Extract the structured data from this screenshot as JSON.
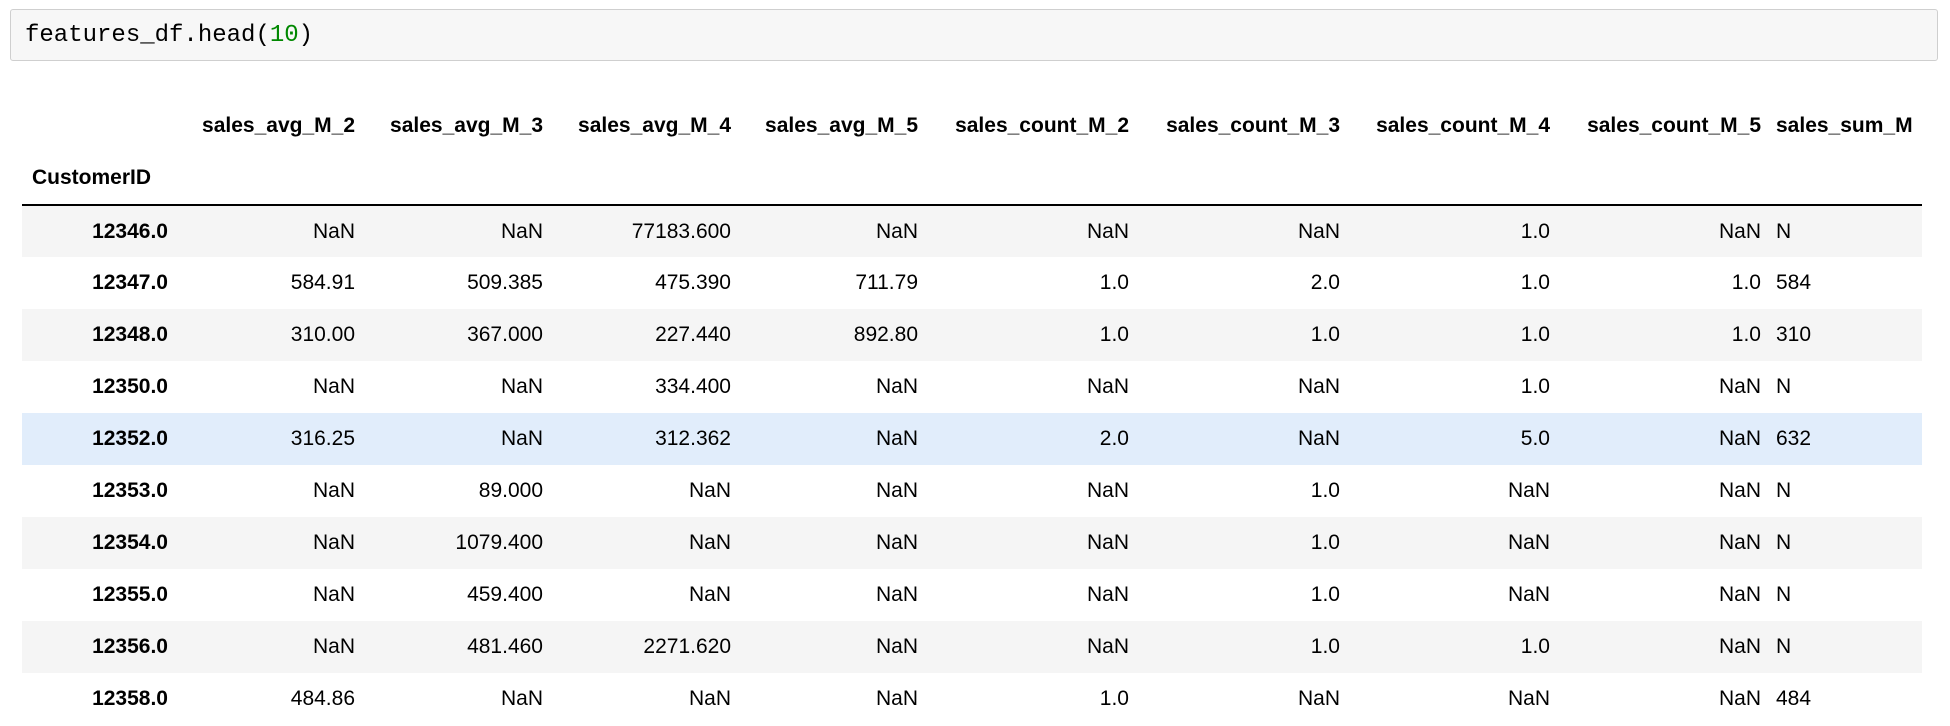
{
  "code": {
    "func": "features_df.head",
    "open_paren": "(",
    "arg": "10",
    "close_paren": ")"
  },
  "table": {
    "index_name": "CustomerID",
    "columns": [
      "sales_avg_M_2",
      "sales_avg_M_3",
      "sales_avg_M_4",
      "sales_avg_M_5",
      "sales_count_M_2",
      "sales_count_M_3",
      "sales_count_M_4",
      "sales_count_M_5",
      "sales_sum_M"
    ],
    "rows": [
      {
        "index": "12346.0",
        "cells": [
          "NaN",
          "NaN",
          "77183.600",
          "NaN",
          "NaN",
          "NaN",
          "1.0",
          "NaN",
          "N"
        ]
      },
      {
        "index": "12347.0",
        "cells": [
          "584.91",
          "509.385",
          "475.390",
          "711.79",
          "1.0",
          "2.0",
          "1.0",
          "1.0",
          "584"
        ]
      },
      {
        "index": "12348.0",
        "cells": [
          "310.00",
          "367.000",
          "227.440",
          "892.80",
          "1.0",
          "1.0",
          "1.0",
          "1.0",
          "310"
        ]
      },
      {
        "index": "12350.0",
        "cells": [
          "NaN",
          "NaN",
          "334.400",
          "NaN",
          "NaN",
          "NaN",
          "1.0",
          "NaN",
          "N"
        ]
      },
      {
        "index": "12352.0",
        "cells": [
          "316.25",
          "NaN",
          "312.362",
          "NaN",
          "2.0",
          "NaN",
          "5.0",
          "NaN",
          "632"
        ]
      },
      {
        "index": "12353.0",
        "cells": [
          "NaN",
          "89.000",
          "NaN",
          "NaN",
          "NaN",
          "1.0",
          "NaN",
          "NaN",
          "N"
        ]
      },
      {
        "index": "12354.0",
        "cells": [
          "NaN",
          "1079.400",
          "NaN",
          "NaN",
          "NaN",
          "1.0",
          "NaN",
          "NaN",
          "N"
        ]
      },
      {
        "index": "12355.0",
        "cells": [
          "NaN",
          "459.400",
          "NaN",
          "NaN",
          "NaN",
          "1.0",
          "NaN",
          "NaN",
          "N"
        ]
      },
      {
        "index": "12356.0",
        "cells": [
          "NaN",
          "481.460",
          "2271.620",
          "NaN",
          "NaN",
          "1.0",
          "1.0",
          "NaN",
          "N"
        ]
      },
      {
        "index": "12358.0",
        "cells": [
          "484.86",
          "NaN",
          "NaN",
          "NaN",
          "1.0",
          "NaN",
          "NaN",
          "NaN",
          "484"
        ]
      }
    ],
    "hover_row_index": 4
  },
  "colors": {
    "stripe": "#f5f5f5",
    "hover": "#e1edfb",
    "code_bg": "#f7f7f7",
    "code_border": "#cfcfcf"
  }
}
